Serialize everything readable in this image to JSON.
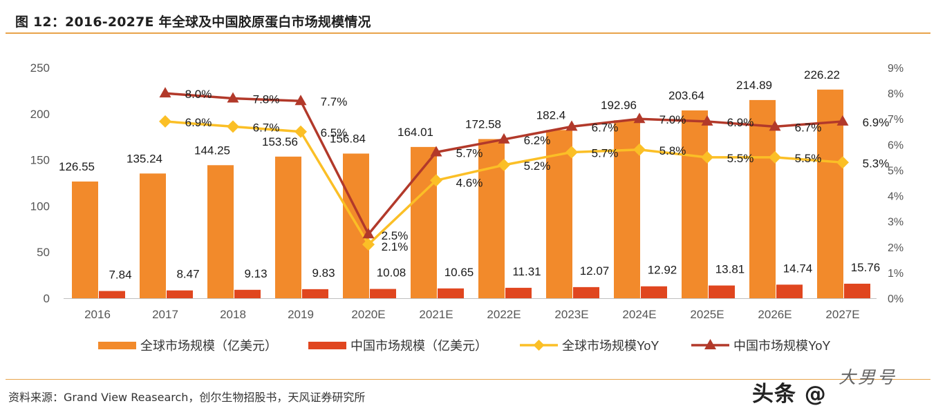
{
  "header": {
    "title": "图 12：2016-2027E 年全球及中国胶原蛋白市场规模情况"
  },
  "footer": {
    "source": "资料来源：Grand View Reasearch，创尔生物招股书，天风证券研究所"
  },
  "watermark": {
    "text": "头条 @",
    "logo": "大男号"
  },
  "colors": {
    "global_bar": "#f28a2b",
    "china_bar": "#e0461f",
    "global_yoy": "#fbbf26",
    "china_yoy": "#b2392a",
    "axis_text": "#555555",
    "rule": "#e8a34a"
  },
  "chart_data": {
    "type": "bar",
    "categories": [
      "2016",
      "2017",
      "2018",
      "2019",
      "2020E",
      "2021E",
      "2022E",
      "2023E",
      "2024E",
      "2025E",
      "2026E",
      "2027E"
    ],
    "series": [
      {
        "name": "全球市场规模（亿美元）",
        "type": "bar",
        "axis": "left",
        "values": [
          126.55,
          135.24,
          144.25,
          153.56,
          156.84,
          164.01,
          172.58,
          182.4,
          192.96,
          203.64,
          214.89,
          226.22
        ],
        "labels": [
          "126.55",
          "135.24",
          "144.25",
          "153.56",
          "156.84",
          "164.01",
          "172.58",
          "182.4",
          "192.96",
          "203.64",
          "214.89",
          "226.22"
        ]
      },
      {
        "name": "中国市场规模（亿美元）",
        "type": "bar",
        "axis": "left",
        "values": [
          7.84,
          8.47,
          9.13,
          9.83,
          10.08,
          10.65,
          11.31,
          12.07,
          12.92,
          13.81,
          14.74,
          15.76
        ],
        "labels": [
          "7.84",
          "8.47",
          "9.13",
          "9.83",
          "10.08",
          "10.65",
          "11.31",
          "12.07",
          "12.92",
          "13.81",
          "14.74",
          "15.76"
        ]
      },
      {
        "name": "全球市场规模YoY",
        "type": "line",
        "axis": "right",
        "marker": "diamond",
        "values": [
          null,
          6.9,
          6.7,
          6.5,
          2.1,
          4.6,
          5.2,
          5.7,
          5.8,
          5.5,
          5.5,
          5.3
        ],
        "labels": [
          null,
          "6.9%",
          "6.7%",
          "6.5%",
          "2.1%",
          "4.6%",
          "5.2%",
          "5.7%",
          "5.8%",
          "5.5%",
          "5.5%",
          "5.3%"
        ]
      },
      {
        "name": "中国市场规模YoY",
        "type": "line",
        "axis": "right",
        "marker": "triangle",
        "values": [
          null,
          8.0,
          7.8,
          7.7,
          2.5,
          5.7,
          6.2,
          6.7,
          7.0,
          6.9,
          6.7,
          6.9
        ],
        "labels": [
          null,
          "8.0%",
          "7.8%",
          "7.7%",
          "2.5%",
          "5.7%",
          "6.2%",
          "6.7%",
          "7.0%",
          "6.9%",
          "6.7%",
          "6.9%"
        ]
      }
    ],
    "y_left": {
      "min": 0,
      "max": 250,
      "ticks": [
        "0",
        "50",
        "100",
        "150",
        "200",
        "250"
      ]
    },
    "y_right": {
      "min": 0,
      "max": 9,
      "ticks": [
        "0%",
        "1%",
        "2%",
        "3%",
        "4%",
        "5%",
        "6%",
        "7%",
        "8%",
        "9%"
      ]
    },
    "grid": false,
    "legend_position": "bottom"
  }
}
